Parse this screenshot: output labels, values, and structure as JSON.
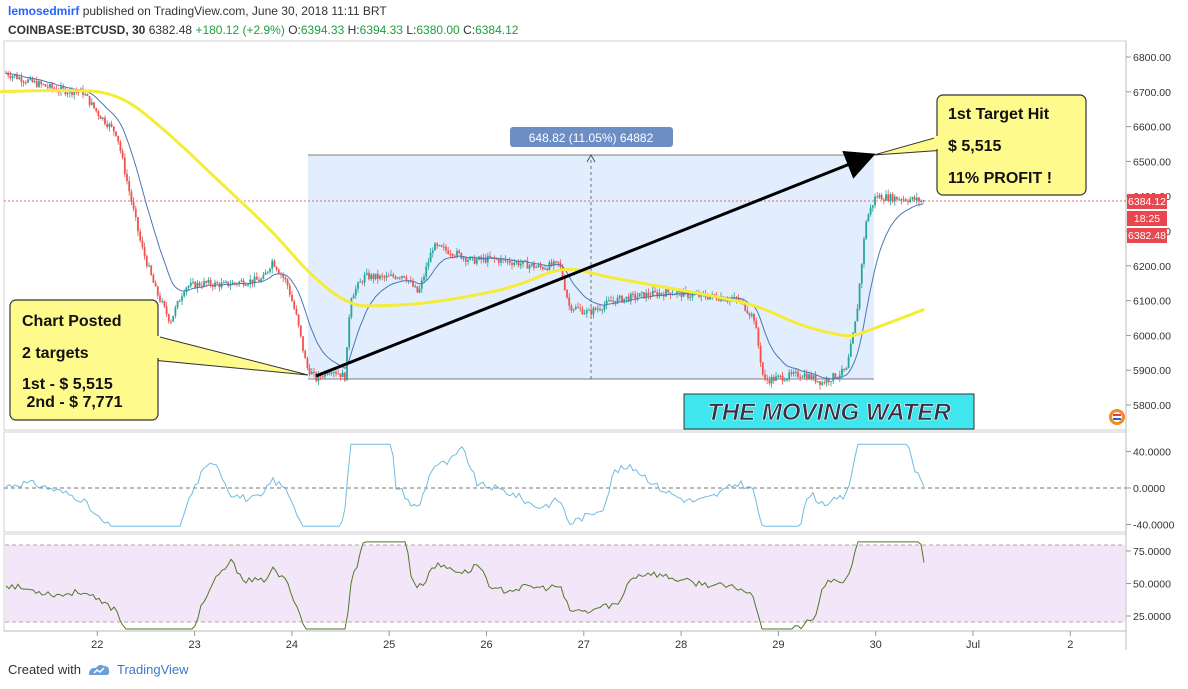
{
  "header": {
    "author": "lemosedmirf",
    "published": "published on TradingView.com, June 30, 2018 11:11 BRT",
    "symbol": "COINBASE:BTCUSD, 30",
    "last": "6382.48",
    "change": "+180.12 (+2.9%)",
    "o_label": "O:",
    "o_value": "6394.33",
    "h_label": "H:",
    "h_value": "6394.33",
    "l_label": "L:",
    "l_value": "6380.00",
    "c_label": "C:",
    "c_value": "6384.12"
  },
  "footer": {
    "created_with": "Created with",
    "brand": "TradingView"
  },
  "colors": {
    "up": "#26a69a",
    "down": "#ef5350",
    "ma": "#f5ec3a",
    "ema": "#4a78b8",
    "osc": "#70bcdf",
    "rsi": "#4f7a28",
    "rsi_band": "#f3e6f9",
    "range_box": "#dbeafc",
    "callout": "#fffa8c"
  },
  "annotations": {
    "callout_left": [
      "Chart Posted",
      "2 targets",
      "1st - $ 5,515",
      " 2nd - $ 7,771"
    ],
    "callout_right": [
      "1st Target Hit",
      "$ 5,515",
      "11% PROFIT !"
    ],
    "banner": "THE MOVING WATER",
    "range_label": "648.82 (11.05%) 64882"
  },
  "price_tags": {
    "close": "6384.12",
    "timer": "18:25",
    "last": "6382.48"
  },
  "chart_data": [
    {
      "type": "candlestick",
      "title": "",
      "x_ticks": [
        "22",
        "23",
        "24",
        "25",
        "26",
        "27",
        "28",
        "29",
        "30",
        "Jul",
        "2"
      ],
      "y_ticks": [
        "6800.00",
        "6700.00",
        "6600.00",
        "6500.00",
        "6400.00",
        "6300.00",
        "6200.00",
        "6100.00",
        "6000.00",
        "5900.00",
        "5800.00"
      ],
      "ylim": [
        5745,
        6840
      ],
      "close_series": [
        [
          "21.0",
          6760
        ],
        [
          "21.3",
          6730
        ],
        [
          "21.6",
          6705
        ],
        [
          "21.85",
          6700
        ],
        [
          "22.0",
          6640
        ],
        [
          "22.2",
          6580
        ],
        [
          "22.3",
          6450
        ],
        [
          "22.45",
          6260
        ],
        [
          "22.6",
          6130
        ],
        [
          "22.75",
          6040
        ],
        [
          "22.9",
          6140
        ],
        [
          "23.1",
          6150
        ],
        [
          "23.3",
          6145
        ],
        [
          "23.5",
          6155
        ],
        [
          "23.7",
          6160
        ],
        [
          "23.8",
          6215
        ],
        [
          "23.95",
          6150
        ],
        [
          "24.05",
          6050
        ],
        [
          "24.15",
          5910
        ],
        [
          "24.25",
          5875
        ],
        [
          "24.4",
          5905
        ],
        [
          "24.55",
          5880
        ],
        [
          "24.6",
          6110
        ],
        [
          "24.75",
          6170
        ],
        [
          "24.95",
          6165
        ],
        [
          "25.15",
          6175
        ],
        [
          "25.3",
          6120
        ],
        [
          "25.45",
          6255
        ],
        [
          "25.65",
          6240
        ],
        [
          "25.85",
          6215
        ],
        [
          "26.05",
          6220
        ],
        [
          "26.3",
          6210
        ],
        [
          "26.55",
          6195
        ],
        [
          "26.75",
          6205
        ],
        [
          "26.85",
          6085
        ],
        [
          "27.05",
          6065
        ],
        [
          "27.3",
          6100
        ],
        [
          "27.6",
          6115
        ],
        [
          "27.9",
          6125
        ],
        [
          "28.1",
          6115
        ],
        [
          "28.4",
          6110
        ],
        [
          "28.6",
          6100
        ],
        [
          "28.75",
          6050
        ],
        [
          "28.85",
          5870
        ],
        [
          "29.05",
          5880
        ],
        [
          "29.25",
          5890
        ],
        [
          "29.45",
          5865
        ],
        [
          "29.7",
          5900
        ],
        [
          "29.8",
          6050
        ],
        [
          "29.9",
          6330
        ],
        [
          "30.0",
          6400
        ],
        [
          "30.2",
          6395
        ],
        [
          "30.4",
          6390
        ],
        [
          "30.5",
          6385
        ]
      ],
      "ma_series": [
        [
          "21.0",
          6700
        ],
        [
          "21.6",
          6705
        ],
        [
          "22.2",
          6700
        ],
        [
          "22.7",
          6590
        ],
        [
          "23.3",
          6430
        ],
        [
          "23.8",
          6300
        ],
        [
          "24.2",
          6170
        ],
        [
          "24.6",
          6085
        ],
        [
          "24.9",
          6085
        ],
        [
          "25.3",
          6090
        ],
        [
          "25.8",
          6110
        ],
        [
          "26.3",
          6140
        ],
        [
          "26.8",
          6200
        ],
        [
          "27.2",
          6170
        ],
        [
          "27.8",
          6140
        ],
        [
          "28.3",
          6115
        ],
        [
          "28.8",
          6085
        ],
        [
          "29.2",
          6030
        ],
        [
          "29.7",
          5995
        ],
        [
          "29.85",
          6005
        ],
        [
          "30.5",
          6075
        ]
      ],
      "range_measure": {
        "from": 5865,
        "to": 6514,
        "change": 648.82,
        "percent": 11.05
      }
    },
    {
      "type": "line",
      "title": "",
      "y_ticks": [
        "40.0000",
        "0.0000",
        "-40.0000"
      ],
      "ylim": [
        -50,
        55
      ],
      "zero_line": 0
    },
    {
      "type": "area",
      "title": "",
      "y_ticks": [
        "75.0000",
        "50.0000",
        "25.0000"
      ],
      "ylim": [
        12,
        88
      ],
      "band": [
        20,
        80
      ]
    }
  ]
}
